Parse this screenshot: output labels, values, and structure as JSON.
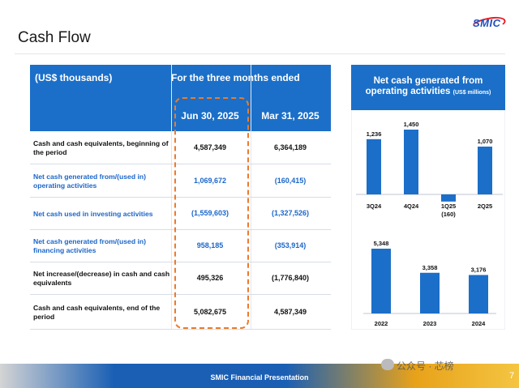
{
  "page": {
    "title": "Cash Flow",
    "logo": "SMIC"
  },
  "table": {
    "units_header": "(US$ thousands)",
    "period_header": "For the three months ended",
    "columns": [
      "Jun 30, 2025",
      "Mar 31, 2025"
    ],
    "rows": [
      {
        "label": "Cash and cash equivalents, beginning of the period",
        "values": [
          "4,587,349",
          "6,364,189"
        ],
        "color": "#111111"
      },
      {
        "label": "Net cash generated from/(used in) operating activities",
        "values": [
          "1,069,672",
          "(160,415)"
        ],
        "color": "#1b66c9"
      },
      {
        "label": "Net cash used in investing activities",
        "values": [
          "(1,559,603)",
          "(1,327,526)"
        ],
        "color": "#1b66c9"
      },
      {
        "label": "Net cash generated from/(used in) financing activities",
        "values": [
          "958,185",
          "(353,914)"
        ],
        "color": "#1b66c9"
      },
      {
        "label": "Net increase/(decrease) in cash and cash equivalents",
        "values": [
          "495,326",
          "(1,776,840)"
        ],
        "color": "#111111"
      },
      {
        "label": "Cash and cash equivalents, end of the period",
        "values": [
          "5,082,675",
          "4,587,349"
        ],
        "color": "#111111"
      }
    ]
  },
  "panel": {
    "title": "Net cash generated from operating activities",
    "units": "(US$ millions)"
  },
  "chart_data": [
    {
      "type": "bar",
      "categories": [
        "3Q24",
        "4Q24",
        "1Q25",
        "2Q25"
      ],
      "values": [
        1236,
        1450,
        -160,
        1070
      ],
      "labels": [
        "1,236",
        "1,450",
        "(160)",
        "1,070"
      ],
      "color": "#1b6fc8"
    },
    {
      "type": "bar",
      "categories": [
        "2022",
        "2023",
        "2024"
      ],
      "values": [
        5348,
        3358,
        3176
      ],
      "labels": [
        "5,348",
        "3,358",
        "3,176"
      ],
      "color": "#1b6fc8"
    }
  ],
  "footer": {
    "text": "SMIC Financial Presentation",
    "page_number": "7",
    "watermark": "公众号 · 芯榜"
  },
  "colors": {
    "accent": "#1b6fc8",
    "highlight": "#ee7a2a"
  }
}
